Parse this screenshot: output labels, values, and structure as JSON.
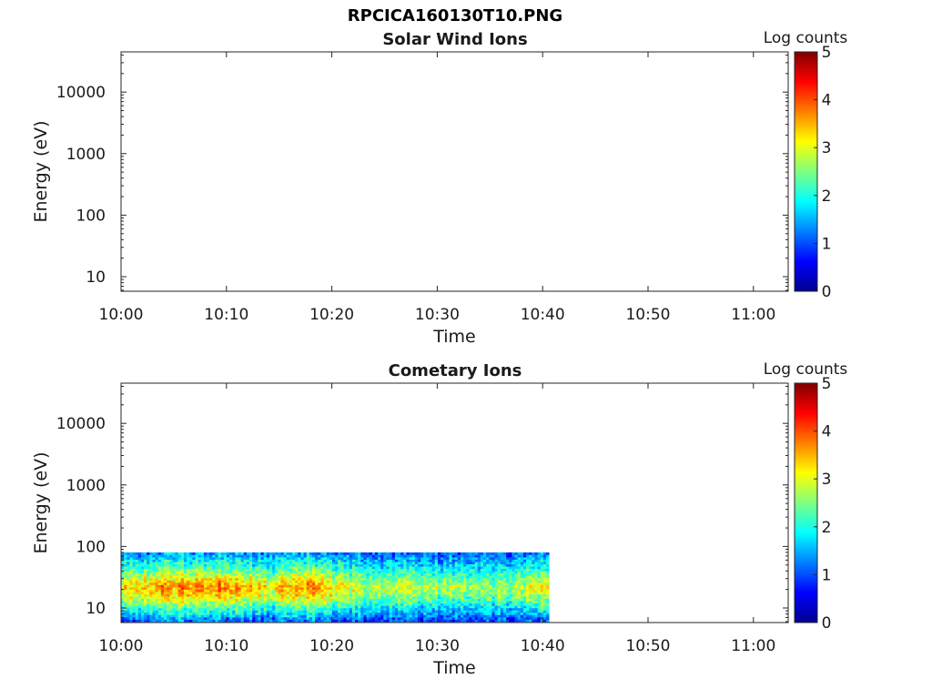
{
  "figure_title": "RPCICA160130T10.PNG",
  "colors": {
    "background": "#ffffff",
    "axis": "#262626",
    "colormap": [
      "#00008f",
      "#0000ff",
      "#007fff",
      "#00ffff",
      "#7fff7f",
      "#ffff00",
      "#ff7f00",
      "#ff0000",
      "#7f0000"
    ]
  },
  "chart_data": [
    {
      "type": "heatmap",
      "title": "Solar Wind Ions",
      "xlabel": "Time",
      "ylabel": "Energy (eV)",
      "x_ticks": [
        "10:00",
        "10:10",
        "10:20",
        "10:30",
        "10:40",
        "10:50",
        "11:00"
      ],
      "xlim_minutes_after_10_00": [
        0,
        63.3
      ],
      "y_scale": "log",
      "y_ticks": [
        "10",
        "100",
        "1000",
        "10000"
      ],
      "ylim": [
        5.8,
        45000
      ],
      "colorbar": {
        "label": "Log counts",
        "range": [
          0,
          5
        ],
        "ticks": [
          "0",
          "1",
          "2",
          "3",
          "4",
          "5"
        ]
      },
      "data": []
    },
    {
      "type": "heatmap",
      "title": "Cometary Ions",
      "xlabel": "Time",
      "ylabel": "Energy (eV)",
      "x_ticks": [
        "10:00",
        "10:10",
        "10:20",
        "10:30",
        "10:40",
        "10:50",
        "11:00"
      ],
      "xlim_minutes_after_10_00": [
        0,
        63.3
      ],
      "y_scale": "log",
      "y_ticks": [
        "10",
        "100",
        "1000",
        "10000"
      ],
      "ylim": [
        5.8,
        45000
      ],
      "colorbar": {
        "label": "Log counts",
        "range": [
          0,
          5
        ],
        "ticks": [
          "0",
          "1",
          "2",
          "3",
          "4",
          "5"
        ]
      },
      "data_time_range_minutes": [
        0,
        40.6
      ],
      "data_energy_range_eV": [
        6,
        80
      ],
      "energy_profile": [
        {
          "energy_eV": 6.5,
          "log_counts": 1.2
        },
        {
          "energy_eV": 8,
          "log_counts": 1.8
        },
        {
          "energy_eV": 10,
          "log_counts": 2.2
        },
        {
          "energy_eV": 13,
          "log_counts": 2.8
        },
        {
          "energy_eV": 17,
          "log_counts": 3.3
        },
        {
          "energy_eV": 22,
          "log_counts": 3.6
        },
        {
          "energy_eV": 28,
          "log_counts": 3.2
        },
        {
          "energy_eV": 38,
          "log_counts": 2.6
        },
        {
          "energy_eV": 50,
          "log_counts": 2.1
        },
        {
          "energy_eV": 65,
          "log_counts": 1.7
        },
        {
          "energy_eV": 80,
          "log_counts": 1.3
        }
      ],
      "time_modulation": [
        {
          "minute": 0,
          "factor": 0.9
        },
        {
          "minute": 5,
          "factor": 1.0
        },
        {
          "minute": 10,
          "factor": 1.05
        },
        {
          "minute": 14,
          "factor": 0.85
        },
        {
          "minute": 18,
          "factor": 1.05
        },
        {
          "minute": 22,
          "factor": 0.8
        },
        {
          "minute": 30,
          "factor": 0.75
        },
        {
          "minute": 35,
          "factor": 0.7
        },
        {
          "minute": 40.6,
          "factor": 0.85
        }
      ]
    }
  ]
}
